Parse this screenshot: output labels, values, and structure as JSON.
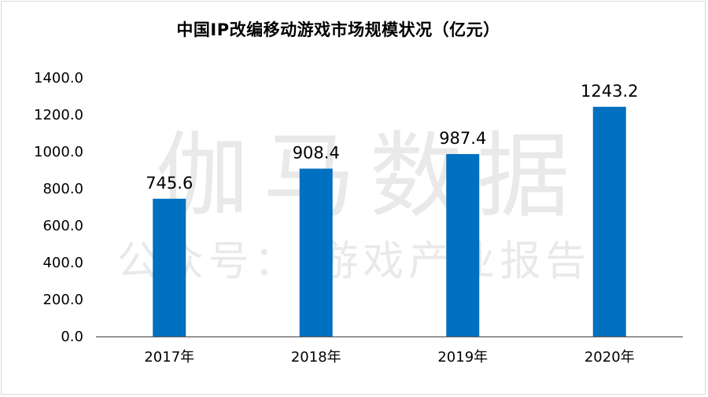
{
  "chart_data": {
    "type": "bar",
    "title": "中国IP改编移动游戏市场规模状况（亿元）",
    "categories": [
      "2017年",
      "2018年",
      "2019年",
      "2020年"
    ],
    "values": [
      745.6,
      908.4,
      987.4,
      1243.2
    ],
    "value_labels": [
      "745.6",
      "908.4",
      "987.4",
      "1243.2"
    ],
    "ylim": [
      0,
      1400
    ],
    "yticks": [
      "0.0",
      "200.0",
      "400.0",
      "600.0",
      "800.0",
      "1000.0",
      "1200.0",
      "1400.0"
    ],
    "bar_color": "#0070C0",
    "grid": false,
    "legend": "none"
  },
  "watermark": {
    "line1": "伽马数据",
    "line2": "公众号： 游戏产业报告"
  }
}
